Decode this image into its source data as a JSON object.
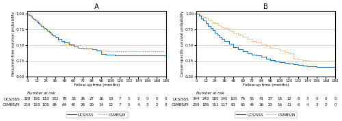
{
  "chart_data": [
    {
      "type": "step",
      "title": "A",
      "y_label": "Recurrent-free survival probability",
      "x_label": "Follow-up time (months)",
      "xlim": [
        0,
        180
      ],
      "ylim": [
        0,
        1.05
      ],
      "xticks": [
        0,
        12,
        24,
        36,
        48,
        60,
        72,
        84,
        96,
        108,
        120,
        132,
        144,
        156,
        168,
        180
      ],
      "yticks": [
        {
          "value": 0.0,
          "label": "0.00"
        },
        {
          "value": 0.25,
          "label": "0.25"
        },
        {
          "value": 0.5,
          "label": "0.50"
        },
        {
          "value": 0.75,
          "label": "0.75"
        },
        {
          "value": 1.0,
          "label": "1.00"
        }
      ],
      "grid": "y",
      "legend": "upper center",
      "at_risk_title": "Number at risk",
      "at_risk_x": [
        0,
        12,
        24,
        36,
        48,
        60,
        72,
        84,
        96,
        108,
        120,
        132,
        144,
        156,
        168,
        180
      ],
      "series": [
        {
          "name": "UCS/SSS",
          "line_style": "solid",
          "x": [
            0,
            2,
            4,
            6,
            8,
            10,
            12,
            14,
            16,
            18,
            20,
            22,
            24,
            26,
            28,
            30,
            32,
            34,
            36,
            40,
            44,
            48,
            54,
            60,
            66,
            72,
            78,
            84,
            90,
            96,
            102,
            108,
            114,
            120,
            126,
            132,
            138,
            144,
            156,
            168,
            180
          ],
          "values": [
            1.0,
            0.98,
            0.96,
            0.94,
            0.92,
            0.9,
            0.87,
            0.85,
            0.83,
            0.81,
            0.79,
            0.77,
            0.75,
            0.73,
            0.71,
            0.69,
            0.67,
            0.65,
            0.63,
            0.6,
            0.57,
            0.54,
            0.51,
            0.48,
            0.46,
            0.45,
            0.44,
            0.43,
            0.41,
            0.36,
            0.35,
            0.35,
            0.33,
            0.33,
            0.33,
            0.33,
            0.33,
            0.33,
            0.33,
            0.33,
            0.33
          ],
          "at_risk": [
            328,
            191,
            133,
            102,
            78,
            55,
            36,
            27,
            16,
            10,
            7,
            5,
            2,
            0,
            0,
            0
          ]
        },
        {
          "name": "CSMBS/PI",
          "line_style": "dotted",
          "x": [
            0,
            2,
            4,
            6,
            8,
            10,
            12,
            14,
            16,
            18,
            20,
            22,
            24,
            26,
            28,
            30,
            32,
            34,
            36,
            40,
            44,
            48,
            54,
            60,
            66,
            72,
            78,
            84,
            90,
            96,
            102,
            108,
            114,
            120,
            126,
            132,
            138,
            144,
            156,
            168,
            180
          ],
          "values": [
            1.0,
            0.98,
            0.96,
            0.94,
            0.92,
            0.9,
            0.88,
            0.86,
            0.83,
            0.81,
            0.79,
            0.77,
            0.74,
            0.72,
            0.7,
            0.68,
            0.66,
            0.64,
            0.62,
            0.58,
            0.55,
            0.52,
            0.5,
            0.48,
            0.46,
            0.45,
            0.44,
            0.43,
            0.42,
            0.41,
            0.4,
            0.4,
            0.4,
            0.4,
            0.4,
            0.4,
            0.4,
            0.4,
            0.4,
            0.4,
            0.4
          ],
          "at_risk": [
            219,
            153,
            105,
            84,
            64,
            40,
            26,
            20,
            14,
            12,
            7,
            5,
            4,
            3,
            2,
            0
          ]
        }
      ]
    },
    {
      "type": "step",
      "title": "B",
      "y_label": "Cancer-specific survival probability",
      "x_label": "Follow-up time (months)",
      "xlim": [
        0,
        180
      ],
      "ylim": [
        0,
        1.05
      ],
      "xticks": [
        0,
        12,
        24,
        36,
        48,
        60,
        72,
        84,
        96,
        108,
        120,
        132,
        144,
        156,
        168,
        180
      ],
      "yticks": [
        {
          "value": 0.0,
          "label": "0.00"
        },
        {
          "value": 0.25,
          "label": "0.25"
        },
        {
          "value": 0.5,
          "label": "0.50"
        },
        {
          "value": 0.75,
          "label": "0.75"
        },
        {
          "value": 1.0,
          "label": "1.00"
        }
      ],
      "grid": "y",
      "legend": "upper center",
      "at_risk_title": "Number at risk",
      "at_risk_x": [
        0,
        12,
        24,
        36,
        48,
        60,
        72,
        84,
        96,
        108,
        120,
        132,
        144,
        156,
        168,
        180
      ],
      "series": [
        {
          "name": "UCS/SSS",
          "line_style": "solid",
          "x": [
            0,
            3,
            6,
            9,
            12,
            15,
            18,
            21,
            24,
            27,
            30,
            33,
            36,
            42,
            48,
            54,
            60,
            66,
            72,
            78,
            84,
            90,
            96,
            102,
            108,
            114,
            120,
            126,
            132,
            138,
            144,
            156,
            168,
            180
          ],
          "values": [
            1.0,
            0.97,
            0.93,
            0.89,
            0.85,
            0.81,
            0.78,
            0.74,
            0.7,
            0.67,
            0.63,
            0.6,
            0.57,
            0.52,
            0.47,
            0.43,
            0.4,
            0.37,
            0.35,
            0.33,
            0.31,
            0.28,
            0.26,
            0.24,
            0.22,
            0.21,
            0.2,
            0.19,
            0.18,
            0.17,
            0.16,
            0.15,
            0.15,
            0.15
          ],
          "at_risk": [
            344,
            245,
            185,
            140,
            103,
            76,
            55,
            41,
            27,
            18,
            12,
            8,
            3,
            0,
            0,
            0
          ]
        },
        {
          "name": "CSMBS/PI",
          "line_style": "dotted",
          "x": [
            0,
            3,
            6,
            9,
            12,
            15,
            18,
            21,
            24,
            27,
            30,
            33,
            36,
            42,
            48,
            54,
            60,
            66,
            72,
            78,
            84,
            90,
            96,
            102,
            108,
            114,
            120,
            126,
            132,
            138,
            144,
            150,
            156,
            168,
            180
          ],
          "values": [
            1.0,
            0.99,
            0.97,
            0.95,
            0.93,
            0.91,
            0.89,
            0.87,
            0.85,
            0.83,
            0.81,
            0.79,
            0.77,
            0.73,
            0.7,
            0.66,
            0.63,
            0.6,
            0.57,
            0.54,
            0.52,
            0.49,
            0.46,
            0.44,
            0.41,
            0.39,
            0.37,
            0.28,
            0.27,
            0.26,
            0.25,
            0.25,
            0.25,
            0.25,
            0.25
          ],
          "at_risk": [
            239,
            195,
            151,
            117,
            91,
            63,
            44,
            36,
            23,
            16,
            11,
            6,
            4,
            3,
            2,
            0
          ]
        }
      ]
    }
  ]
}
